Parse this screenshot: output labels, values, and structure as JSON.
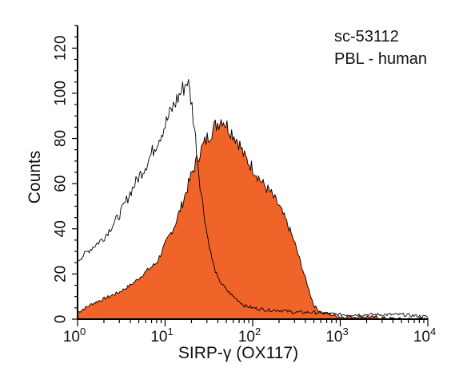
{
  "chart_data": {
    "type": "area",
    "xscale": "log",
    "xlim": [
      1,
      10000
    ],
    "ylim": [
      0,
      130
    ],
    "xlabel": "SIRP-γ (OX117)",
    "ylabel": "Counts",
    "annotations": [
      "sc-53112",
      "PBL - human"
    ],
    "xticks": [
      {
        "value": 1,
        "base": "10",
        "exp": "0"
      },
      {
        "value": 10,
        "base": "10",
        "exp": "1"
      },
      {
        "value": 100,
        "base": "10",
        "exp": "2"
      },
      {
        "value": 1000,
        "base": "10",
        "exp": "3"
      },
      {
        "value": 10000,
        "base": "10",
        "exp": "4"
      }
    ],
    "yticks": [
      0,
      20,
      40,
      60,
      80,
      100,
      120
    ],
    "colors": {
      "filled": "#f0642a",
      "outline": "#000000"
    },
    "series": [
      {
        "style": "filled",
        "x": [
          1,
          1.5,
          2,
          3,
          4,
          5,
          6,
          8,
          10,
          13,
          16,
          20,
          25,
          30,
          35,
          40,
          45,
          50,
          60,
          70,
          80,
          100,
          130,
          160,
          200,
          250,
          300,
          400,
          500,
          600,
          800,
          1000,
          2000,
          5000,
          10000
        ],
        "y": [
          3,
          7,
          9,
          12,
          15,
          18,
          21,
          25,
          33,
          42,
          52,
          64,
          74,
          80,
          84,
          87,
          89,
          86,
          82,
          78,
          72,
          67,
          60,
          56,
          50,
          42,
          34,
          18,
          6,
          3,
          2,
          1,
          1,
          0,
          0
        ]
      },
      {
        "style": "outline",
        "x": [
          1,
          1.5,
          2,
          3,
          4,
          5,
          6,
          8,
          10,
          12,
          14,
          16,
          18,
          20,
          22,
          25,
          30,
          35,
          40,
          50,
          60,
          70,
          80,
          100,
          150,
          200,
          300,
          500,
          1000,
          2000,
          5000,
          10000
        ],
        "y": [
          26,
          32,
          36,
          46,
          56,
          63,
          68,
          78,
          86,
          93,
          98,
          102,
          106,
          96,
          82,
          60,
          38,
          25,
          18,
          13,
          10,
          8,
          6,
          5,
          4,
          4,
          3,
          3,
          2,
          2,
          2,
          1
        ]
      }
    ]
  }
}
